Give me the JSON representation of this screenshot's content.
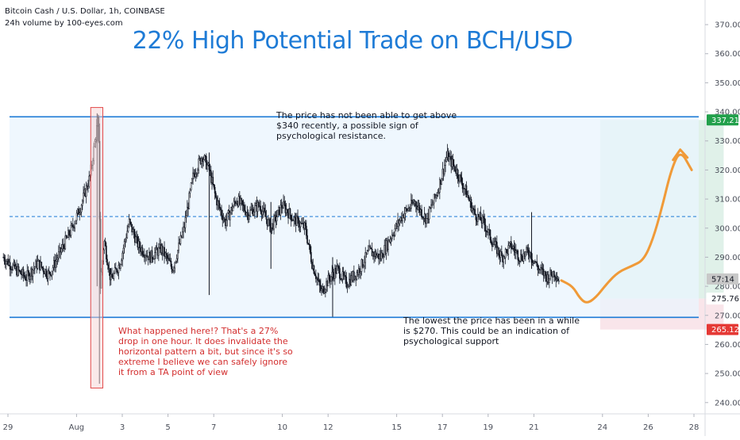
{
  "header": {
    "symbol_line": "Bitcoin Cash / U.S. Dollar, 1h, COINBASE",
    "indicator_line": "24h volume by 100-eyes.com"
  },
  "chart_data": {
    "type": "candlestick",
    "title": "22% High Potential Trade on BCH/USD",
    "y_axis": {
      "ylim": [
        232,
        376
      ],
      "ticks": [
        240,
        250,
        260,
        270,
        280,
        290,
        300,
        310,
        320,
        330,
        340,
        350,
        360,
        370
      ],
      "position": "right"
    },
    "x_axis": {
      "tick_labels": [
        "29",
        "Aug",
        "3",
        "5",
        "7",
        "10",
        "12",
        "15",
        "17",
        "19",
        "21",
        "24",
        "26",
        "28"
      ],
      "tick_days": [
        29,
        32,
        34,
        36,
        38,
        41,
        43,
        46,
        48,
        50,
        52,
        55,
        57,
        59
      ],
      "xlim": [
        28.8,
        60.8
      ]
    },
    "price_path": [
      [
        28.8,
        290
      ],
      [
        29.3,
        286
      ],
      [
        29.8,
        283
      ],
      [
        30.3,
        288
      ],
      [
        30.8,
        284
      ],
      [
        31.3,
        292
      ],
      [
        31.8,
        300
      ],
      [
        32.2,
        308
      ],
      [
        32.6,
        318
      ],
      [
        32.95,
        338
      ],
      [
        33.05,
        280
      ],
      [
        33.2,
        296
      ],
      [
        33.5,
        282
      ],
      [
        33.9,
        288
      ],
      [
        34.3,
        302
      ],
      [
        34.7,
        294
      ],
      [
        35.2,
        290
      ],
      [
        35.7,
        293
      ],
      [
        36.2,
        286
      ],
      [
        36.7,
        300
      ],
      [
        37.1,
        318
      ],
      [
        37.5,
        325
      ],
      [
        37.8,
        320
      ],
      [
        38.1,
        310
      ],
      [
        38.5,
        302
      ],
      [
        39.0,
        310
      ],
      [
        39.5,
        305
      ],
      [
        40.0,
        308
      ],
      [
        40.5,
        300
      ],
      [
        41.0,
        308
      ],
      [
        41.5,
        303
      ],
      [
        42.0,
        300
      ],
      [
        42.3,
        288
      ],
      [
        42.7,
        278
      ],
      [
        43.0,
        282
      ],
      [
        43.4,
        286
      ],
      [
        43.8,
        281
      ],
      [
        44.3,
        285
      ],
      [
        44.8,
        292
      ],
      [
        45.3,
        290
      ],
      [
        45.8,
        298
      ],
      [
        46.3,
        305
      ],
      [
        46.8,
        309
      ],
      [
        47.3,
        303
      ],
      [
        47.8,
        313
      ],
      [
        48.2,
        325
      ],
      [
        48.6,
        320
      ],
      [
        49.0,
        313
      ],
      [
        49.4,
        305
      ],
      [
        49.8,
        302
      ],
      [
        50.2,
        295
      ],
      [
        50.6,
        290
      ],
      [
        51.0,
        294
      ],
      [
        51.4,
        290
      ],
      [
        51.8,
        292
      ],
      [
        52.2,
        286
      ],
      [
        52.6,
        283
      ],
      [
        52.9,
        285
      ],
      [
        53.1,
        282
      ]
    ],
    "spikes": [
      {
        "day": 32.9,
        "high": 339.5,
        "low": 280
      },
      {
        "day": 33.0,
        "high": 336,
        "low": 246.5
      },
      {
        "day": 37.8,
        "high": 326,
        "low": 277
      },
      {
        "day": 40.5,
        "high": 309,
        "low": 286
      },
      {
        "day": 43.2,
        "high": 290,
        "low": 269.5
      },
      {
        "day": 51.9,
        "high": 305.5,
        "low": 286
      }
    ],
    "resistance": 338.3,
    "support": 269.3,
    "midline": 304,
    "marked_bar": {
      "day_from": 32.62,
      "day_to": 33.15,
      "high": 341.5,
      "low": 245
    },
    "projection": [
      [
        53.2,
        282
      ],
      [
        53.7,
        280
      ],
      [
        54.0,
        276
      ],
      [
        54.3,
        274
      ],
      [
        54.7,
        276
      ],
      [
        55.2,
        281
      ],
      [
        55.7,
        285
      ],
      [
        56.3,
        287
      ],
      [
        56.8,
        289
      ],
      [
        57.2,
        296
      ],
      [
        57.6,
        307
      ],
      [
        58.0,
        320
      ],
      [
        58.4,
        327
      ],
      [
        58.9,
        320
      ]
    ],
    "target_zone": {
      "day_from": 54.9,
      "day_to": 60.3,
      "top": 337.21,
      "entry": 275.76
    },
    "stop_zone": {
      "day_from": 54.9,
      "day_to": 60.3,
      "top": 275.76,
      "bottom": 265.12
    },
    "price_badges": [
      {
        "value": 337.21,
        "label": "337.21",
        "color": "#22a04b"
      },
      {
        "value": 282.5,
        "label": "57:14",
        "color": "#c8c8c8"
      },
      {
        "value": 275.76,
        "label": "275.76",
        "color": "#ffffff"
      },
      {
        "value": 265.12,
        "label": "265.12",
        "color": "#e53935"
      }
    ],
    "colors": {
      "title": "#1e7bd6",
      "channel_line": "#1e7bd6",
      "channel_fill": "#eaf4fd",
      "projection": "#f09a38",
      "target_fill": "#e0f1e9",
      "stop_fill": "#f9e5ea",
      "marked": "#e34a4a"
    }
  },
  "annotations": {
    "resistance": "The price has not been able to get above\n$340 recently, a possible sign of\npsychological resistance.",
    "support": "The lowest the price has been in a while\nis $270. This could be an indication of\npsychological support",
    "drop": "What happened here!? That's a 27%\ndrop in one hour. It does invalidate the\nhorizontal pattern a bit, but since it's so\nextreme I believe we can safely ignore\nit from a TA point of view"
  }
}
